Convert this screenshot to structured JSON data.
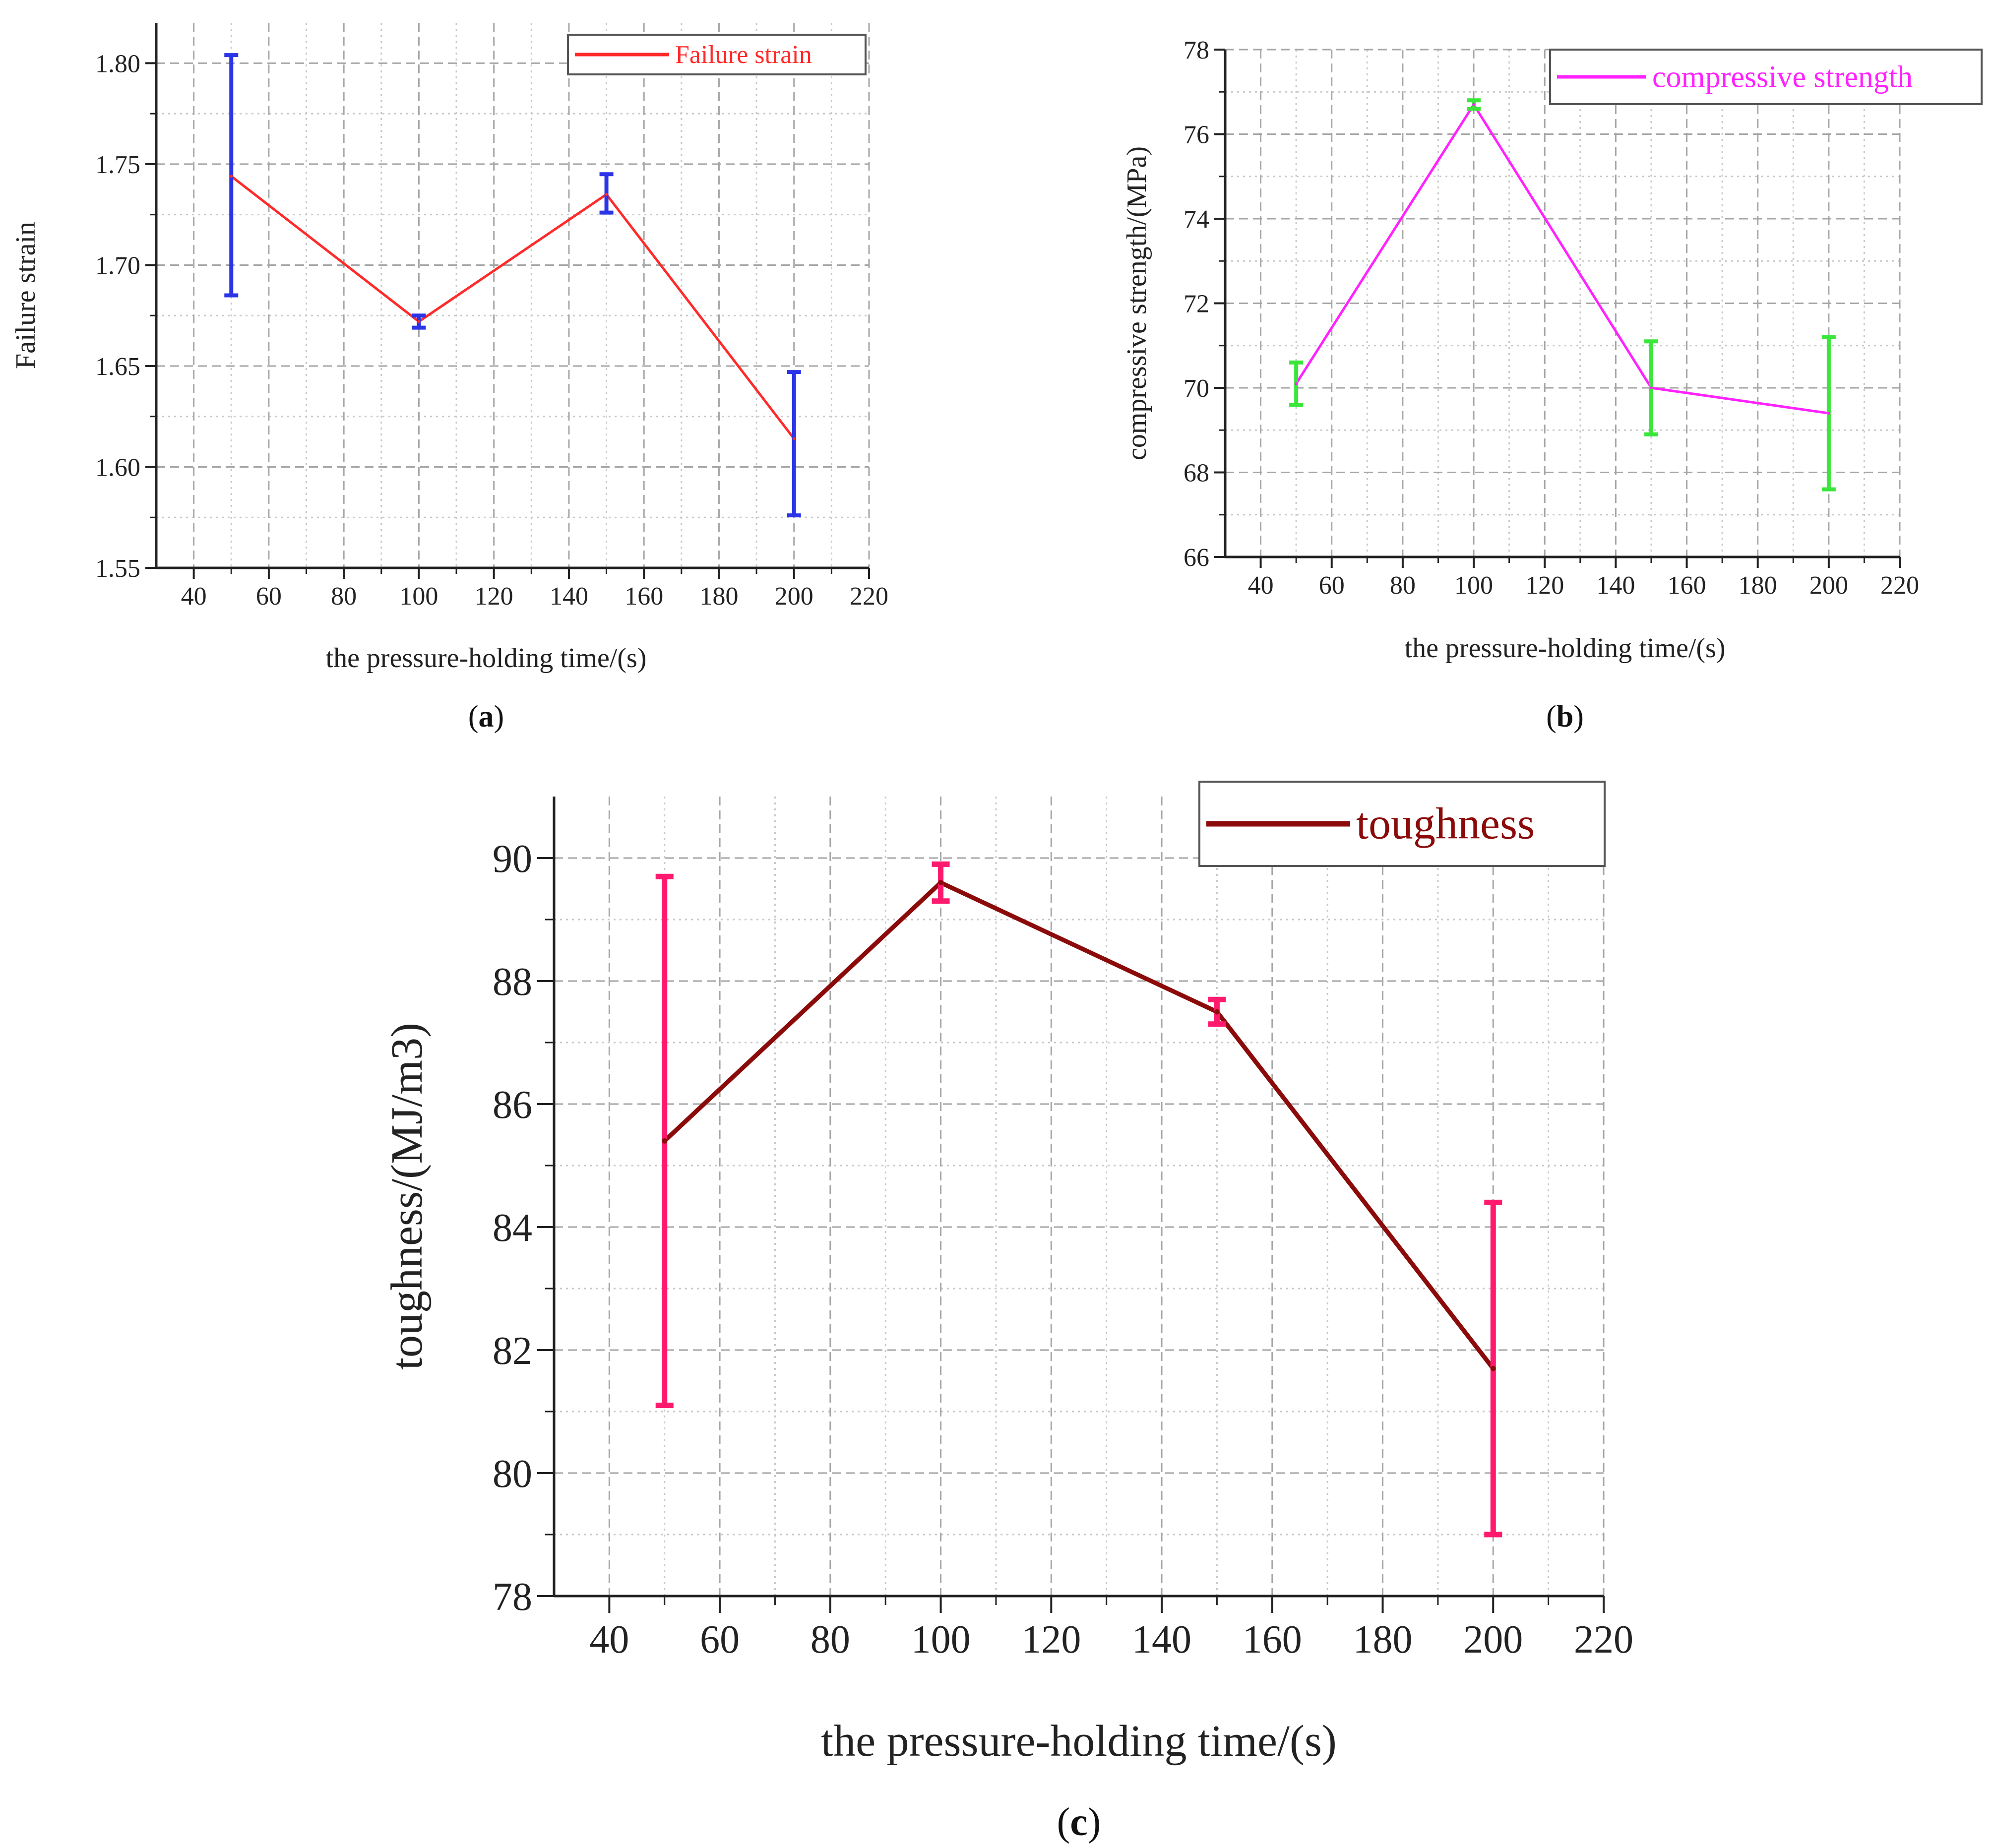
{
  "figure": {
    "panels": [
      "(a)",
      "(b)",
      "(c)"
    ]
  },
  "chart_data": [
    {
      "id": "a",
      "type": "line",
      "panel_label": "(a)",
      "title": "",
      "xlabel": "the pressure-holding time/(s)",
      "ylabel": "Failure strain",
      "xlim": [
        30,
        220
      ],
      "ylim": [
        1.55,
        1.82
      ],
      "xticks": [
        40,
        60,
        80,
        100,
        120,
        140,
        160,
        180,
        200,
        220
      ],
      "yticks": [
        1.55,
        1.6,
        1.65,
        1.7,
        1.75,
        1.8
      ],
      "ytick_labels": [
        "1.55",
        "1.60",
        "1.65",
        "1.70",
        "1.75",
        "1.80"
      ],
      "grid": true,
      "legend_position": "top-right",
      "series": [
        {
          "name": "Failure strain",
          "x": [
            50,
            100,
            150,
            200
          ],
          "values": [
            1.744,
            1.672,
            1.735,
            1.614
          ],
          "err_low": [
            1.685,
            1.669,
            1.726,
            1.576
          ],
          "err_high": [
            1.804,
            1.675,
            1.745,
            1.647
          ]
        }
      ],
      "colors": {
        "line": "#ff2a2a",
        "error": "#2b34e6",
        "legend_text": "#ff2a2a"
      }
    },
    {
      "id": "b",
      "type": "line",
      "panel_label": "(b)",
      "title": "",
      "xlabel": "the pressure-holding time/(s)",
      "ylabel": "compressive strength/(MPa)",
      "xlim": [
        30,
        220
      ],
      "ylim": [
        66,
        78
      ],
      "xticks": [
        40,
        60,
        80,
        100,
        120,
        140,
        160,
        180,
        200,
        220
      ],
      "yticks": [
        66,
        68,
        70,
        72,
        74,
        76,
        78
      ],
      "ytick_labels": [
        "66",
        "68",
        "70",
        "72",
        "74",
        "76",
        "78"
      ],
      "grid": true,
      "legend_position": "top-right",
      "series": [
        {
          "name": "compressive strength",
          "x": [
            50,
            100,
            150,
            200
          ],
          "values": [
            70.1,
            76.7,
            70.0,
            69.4
          ],
          "err_low": [
            69.6,
            76.6,
            68.9,
            67.6
          ],
          "err_high": [
            70.6,
            76.8,
            71.1,
            71.2
          ]
        }
      ],
      "colors": {
        "line": "#ff22ff",
        "error": "#39e639",
        "legend_text": "#ff22ff"
      }
    },
    {
      "id": "c",
      "type": "line",
      "panel_label": "(c)",
      "title": "",
      "xlabel": "the pressure-holding time/(s)",
      "ylabel": "toughness/(MJ/m3)",
      "xlim": [
        30,
        220
      ],
      "ylim": [
        78,
        91
      ],
      "xticks": [
        40,
        60,
        80,
        100,
        120,
        140,
        160,
        180,
        200,
        220
      ],
      "yticks": [
        78,
        80,
        82,
        84,
        86,
        88,
        90
      ],
      "ytick_labels": [
        "78",
        "80",
        "82",
        "84",
        "86",
        "88",
        "90"
      ],
      "grid": true,
      "legend_position": "top-right",
      "series": [
        {
          "name": "toughness",
          "x": [
            50,
            100,
            150,
            200
          ],
          "values": [
            85.4,
            89.6,
            87.5,
            81.7
          ],
          "err_low": [
            81.1,
            89.3,
            87.3,
            79.0
          ],
          "err_high": [
            89.7,
            89.9,
            87.7,
            84.4
          ]
        }
      ],
      "colors": {
        "line": "#8b0a0a",
        "error": "#ff1a6e",
        "legend_text": "#8b0a0a"
      }
    }
  ]
}
